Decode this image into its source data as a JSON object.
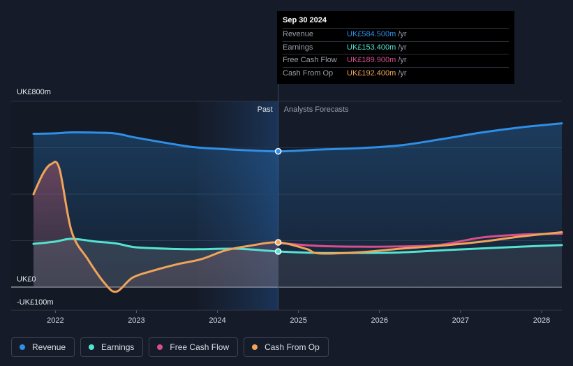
{
  "tooltip": {
    "date": "Sep 30 2024",
    "rows": [
      {
        "label": "Revenue",
        "value": "UK£584.500m",
        "unit": "/yr",
        "color": "#2e8fe6"
      },
      {
        "label": "Earnings",
        "value": "UK£153.400m",
        "unit": "/yr",
        "color": "#54e3d0"
      },
      {
        "label": "Free Cash Flow",
        "value": "UK£189.900m",
        "unit": "/yr",
        "color": "#d64f8c"
      },
      {
        "label": "Cash From Op",
        "value": "UK£192.400m",
        "unit": "/yr",
        "color": "#f0a45a"
      }
    ]
  },
  "legend": [
    {
      "label": "Revenue",
      "color": "#2e8fe6"
    },
    {
      "label": "Earnings",
      "color": "#54e3d0"
    },
    {
      "label": "Free Cash Flow",
      "color": "#d64f8c"
    },
    {
      "label": "Cash From Op",
      "color": "#f0a45a"
    }
  ],
  "chart_data": {
    "type": "line",
    "y_top_label": "UK£800m",
    "y_zero_label": "UK£0",
    "y_bottom_label": "-UK£100m",
    "ylim": [
      -100,
      800
    ],
    "xlim": [
      2021.73,
      2028.25
    ],
    "x_tick_labels": [
      "2022",
      "2023",
      "2024",
      "2025",
      "2026",
      "2027",
      "2028"
    ],
    "x_ticks": [
      2022,
      2023,
      2024,
      2025,
      2026,
      2027,
      2028
    ],
    "past_label": "Past",
    "forecast_label": "Analysts Forecasts",
    "past_band_start": 2023.75,
    "divider_x": 2024.75,
    "series": [
      {
        "name": "Revenue",
        "color": "#2e8fe6",
        "fill": true,
        "x": [
          2021.73,
          2022.0,
          2022.2,
          2022.5,
          2022.75,
          2023.0,
          2023.5,
          2023.75,
          2024.25,
          2024.75,
          2025.25,
          2025.75,
          2026.25,
          2026.75,
          2027.25,
          2027.75,
          2028.25
        ],
        "y": [
          660,
          662,
          666,
          665,
          661,
          643,
          613,
          601,
          591,
          584.5,
          592,
          598,
          610,
          636,
          665,
          688,
          705
        ]
      },
      {
        "name": "Earnings",
        "color": "#54e3d0",
        "fill": false,
        "x": [
          2021.73,
          2022.0,
          2022.2,
          2022.5,
          2022.75,
          2023.0,
          2023.5,
          2023.75,
          2024.25,
          2024.75,
          2025.25,
          2025.75,
          2026.25,
          2026.75,
          2027.25,
          2027.75,
          2028.25
        ],
        "y": [
          186,
          196,
          208,
          196,
          188,
          171,
          164,
          163,
          165,
          153.4,
          147,
          147,
          149,
          158,
          166,
          174,
          181
        ]
      },
      {
        "name": "Free Cash Flow",
        "color": "#d64f8c",
        "fill": false,
        "x": [
          2024.75,
          2025.25,
          2025.75,
          2026.25,
          2026.75,
          2027.25,
          2027.75,
          2028.25
        ],
        "y": [
          189.9,
          177,
          174,
          175,
          182,
          213,
          226,
          230
        ]
      },
      {
        "name": "Cash From Op",
        "color": "#f0a45a",
        "fill": true,
        "x": [
          2021.73,
          2021.85,
          2021.95,
          2022.05,
          2022.2,
          2022.4,
          2022.6,
          2022.75,
          2022.95,
          2023.2,
          2023.5,
          2023.8,
          2024.1,
          2024.4,
          2024.75,
          2025.1,
          2025.25,
          2025.75,
          2026.25,
          2026.75,
          2027.25,
          2027.75,
          2028.25
        ],
        "y": [
          400,
          490,
          530,
          510,
          240,
          120,
          20,
          -20,
          40,
          70,
          98,
          120,
          158,
          178,
          192.4,
          164,
          145,
          150,
          165,
          178,
          195,
          218,
          236
        ]
      }
    ],
    "highlight_x": 2024.75
  }
}
